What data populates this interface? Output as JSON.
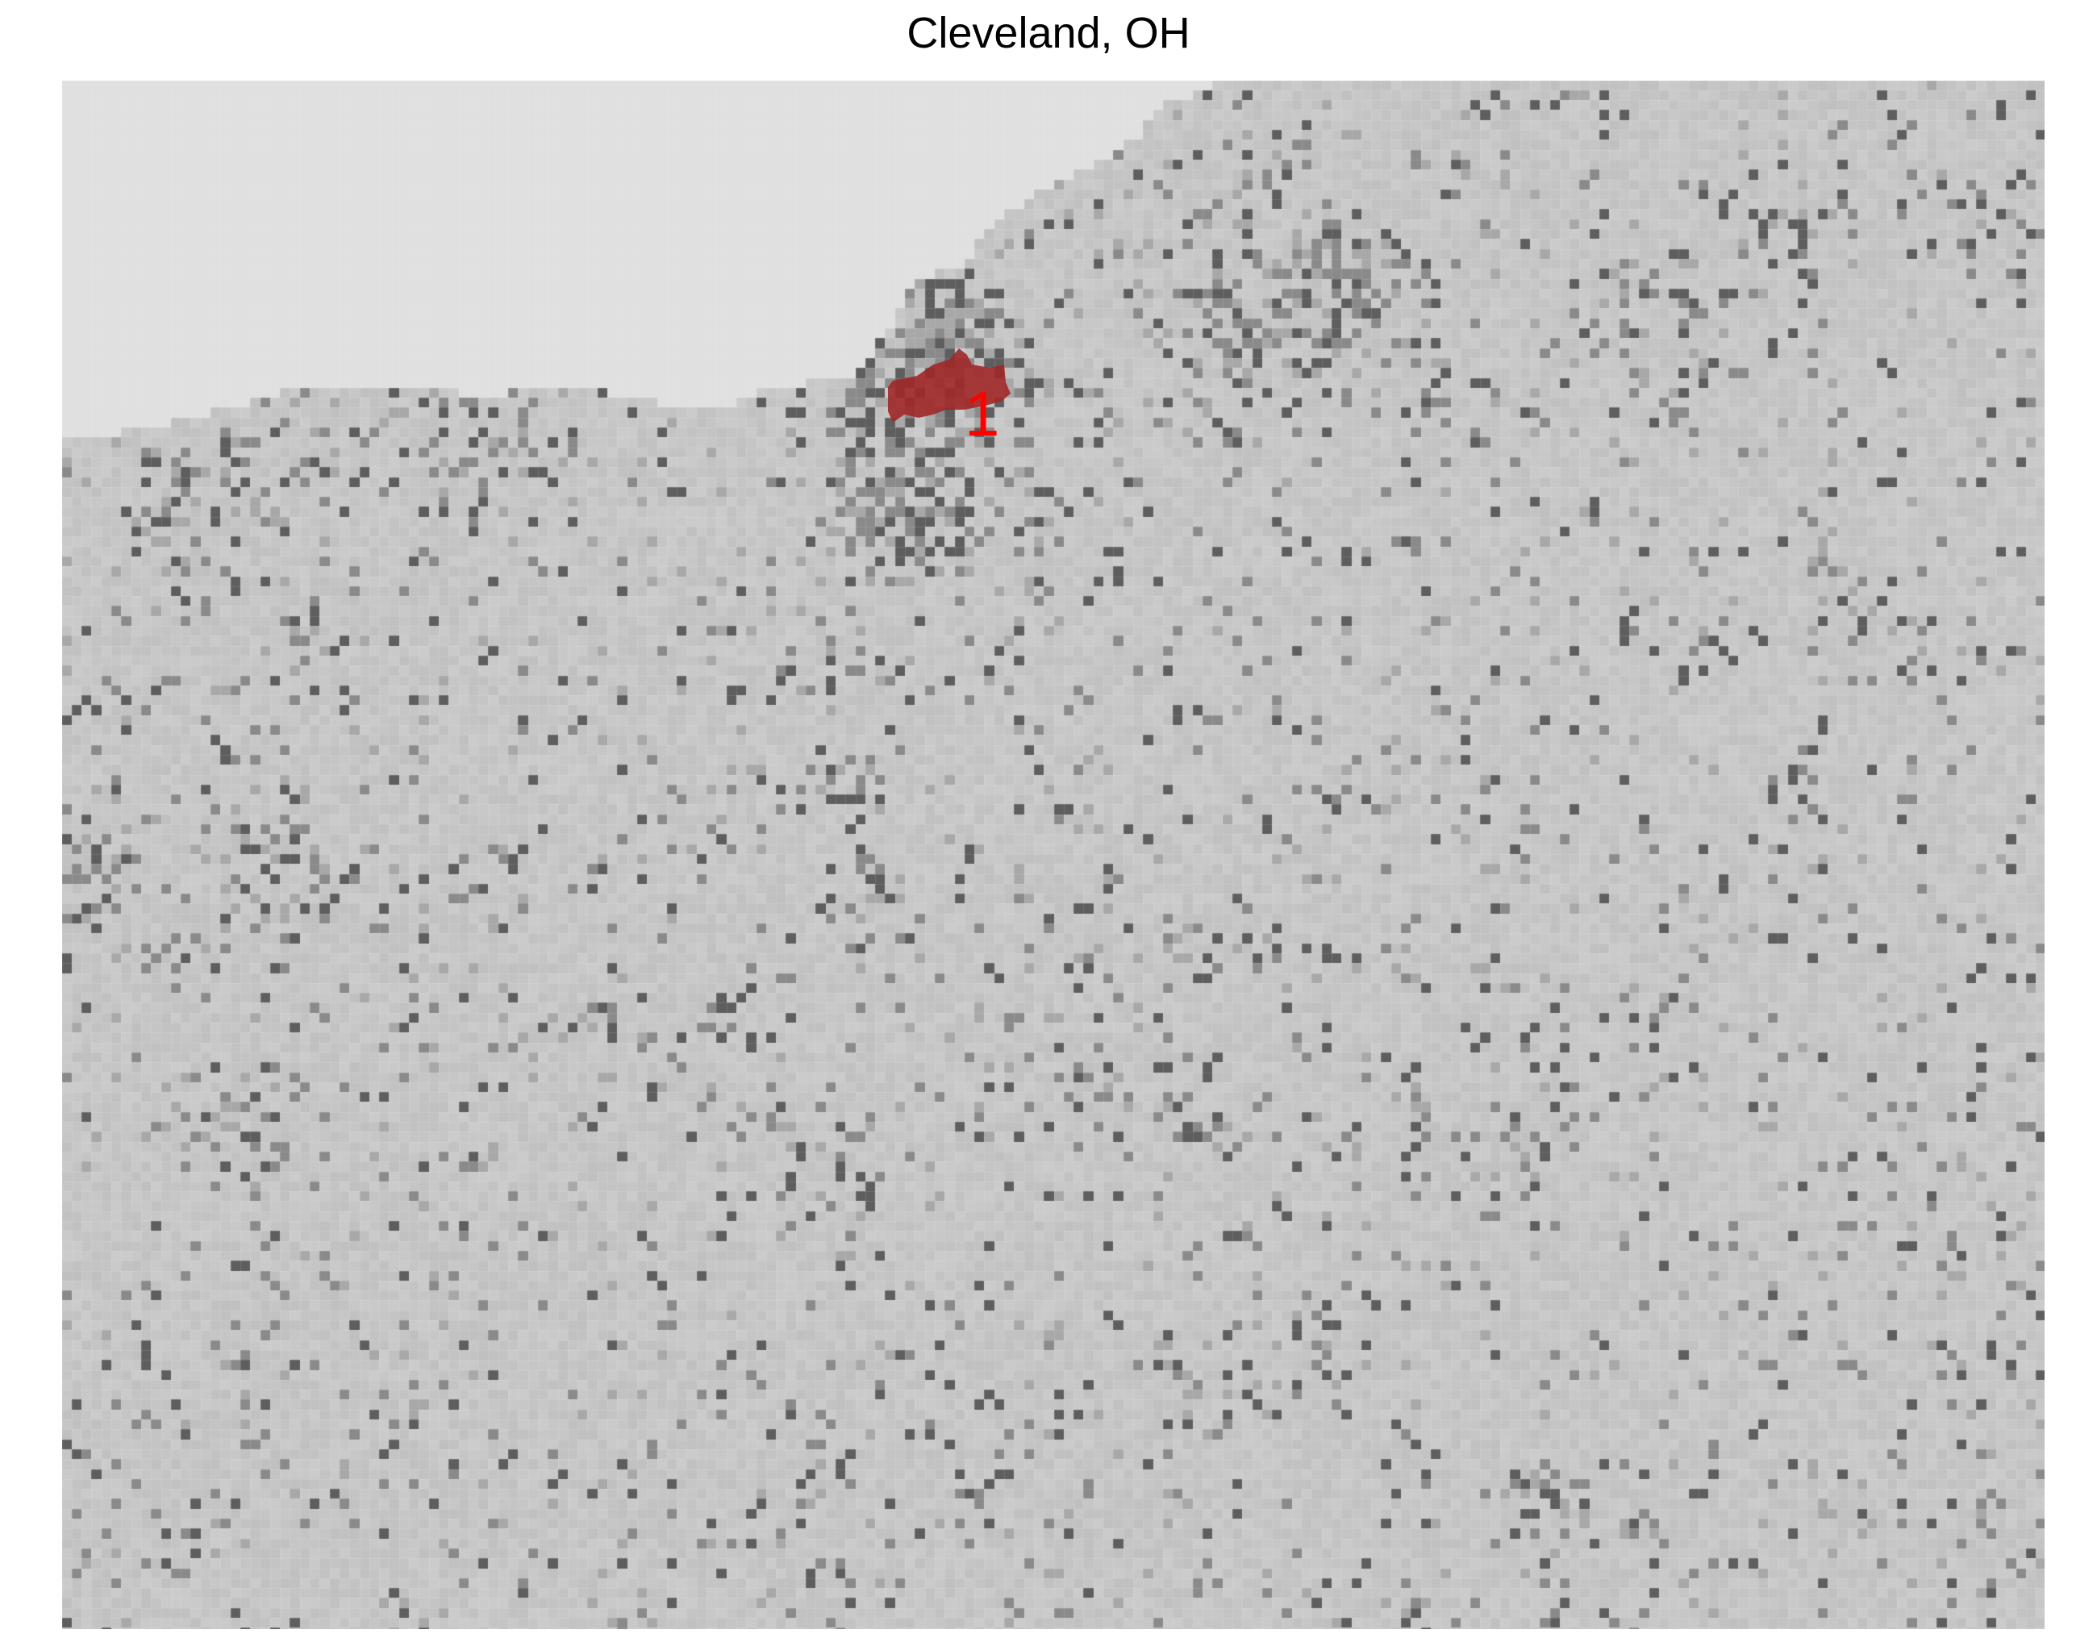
{
  "map": {
    "title": "Cleveland, OH",
    "colors": {
      "lake": "#e0e0e0",
      "land": "#c4c4c4",
      "developed_light": "#a8a8a8",
      "developed_medium": "#8a8a8a",
      "developed_dark": "#5e5e5e",
      "highlight_fill": "#a02828",
      "label_color": "#ff0000"
    },
    "highlighted_regions": [
      {
        "label": "1"
      }
    ]
  }
}
